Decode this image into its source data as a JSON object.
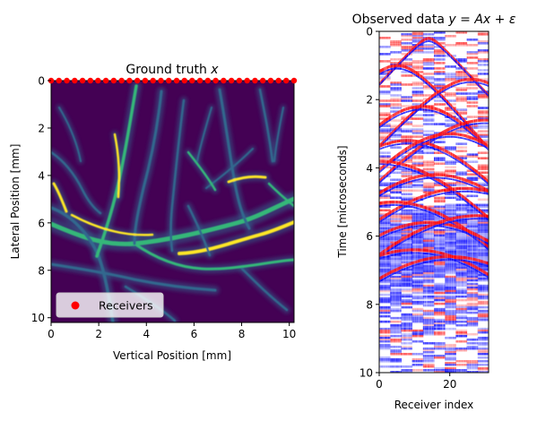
{
  "chart_data": [
    {
      "type": "heatmap",
      "title": "Ground truth x",
      "title_parts": {
        "text": "Ground truth ",
        "math": "x"
      },
      "xlabel": "Vertical Position [mm]",
      "ylabel": "Lateral Position [mm]",
      "xlim": [
        0,
        10.2
      ],
      "ylim": [
        10.2,
        0
      ],
      "x_ticks": [
        0,
        2,
        4,
        6,
        8,
        10
      ],
      "y_ticks": [
        0,
        2,
        4,
        6,
        8,
        10
      ],
      "colormap": "viridis",
      "colors": {
        "background": "#440154",
        "vessel_mid": "#31688e",
        "vessel_bright": "#35b779",
        "vessel_peak": "#fde725",
        "receiver": "#ff0000"
      },
      "legend": {
        "placement": "lower-left",
        "entries": [
          "Receivers"
        ]
      },
      "receivers": {
        "name": "Receivers",
        "y": 0,
        "x": [
          0.0,
          0.33,
          0.66,
          0.99,
          1.32,
          1.65,
          1.97,
          2.3,
          2.63,
          2.96,
          3.29,
          3.62,
          3.95,
          4.28,
          4.61,
          4.94,
          5.27,
          5.6,
          5.92,
          6.25,
          6.58,
          6.91,
          7.24,
          7.57,
          7.9,
          8.23,
          8.56,
          8.89,
          9.22,
          9.55,
          9.87,
          10.2
        ]
      }
    },
    {
      "type": "heatmap",
      "title": "Observed data y = Ax + ε",
      "title_parts": {
        "text": "Observed data ",
        "math": "y = Ax + ε"
      },
      "xlabel": "Receiver index",
      "ylabel": "Time [microseconds]",
      "xlim": [
        0,
        31
      ],
      "ylim": [
        10,
        0
      ],
      "x_ticks": [
        0,
        20
      ],
      "y_ticks": [
        0,
        2,
        4,
        6,
        8,
        10
      ],
      "colormap": "seismic",
      "colors": {
        "negative": "#0000ff",
        "zero": "#ffffff",
        "positive": "#ff0000"
      }
    }
  ]
}
